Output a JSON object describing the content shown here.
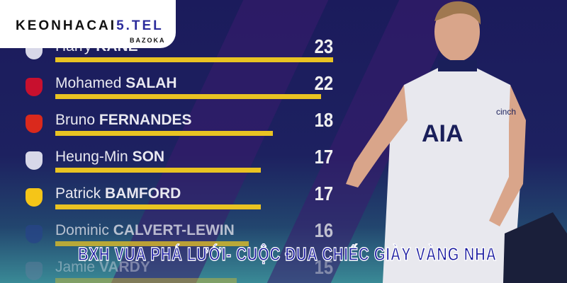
{
  "logo": {
    "brand_prefix": "KEONHACAI",
    "brand_suffix": "5.TEL",
    "tagline": "BAZOKA"
  },
  "headline": "BXH VUA PHÁ LƯỚI- CUỘC ĐUA CHIẾC GIÀY VÀNG NHA",
  "scorers": [
    {
      "first": "Harry",
      "last": "KANE",
      "goals": 23,
      "club_color": "#d8d8e8"
    },
    {
      "first": "Mohamed",
      "last": "SALAH",
      "goals": 22,
      "club_color": "#c8102e"
    },
    {
      "first": "Bruno",
      "last": "FERNANDES",
      "goals": 18,
      "club_color": "#da291c"
    },
    {
      "first": "Heung-Min",
      "last": "SON",
      "goals": 17,
      "club_color": "#d8d8e8"
    },
    {
      "first": "Patrick",
      "last": "BAMFORD",
      "goals": 17,
      "club_color": "#f5c518"
    },
    {
      "first": "Dominic",
      "last": "CALVERT-LEWIN",
      "goals": 16,
      "club_color": "#274488"
    },
    {
      "first": "Jamie",
      "last": "VARDY",
      "goals": 15,
      "club_color": "#6a7fa0"
    }
  ],
  "colors": {
    "bar": "#e9c322",
    "background": "#1b1b5c"
  }
}
